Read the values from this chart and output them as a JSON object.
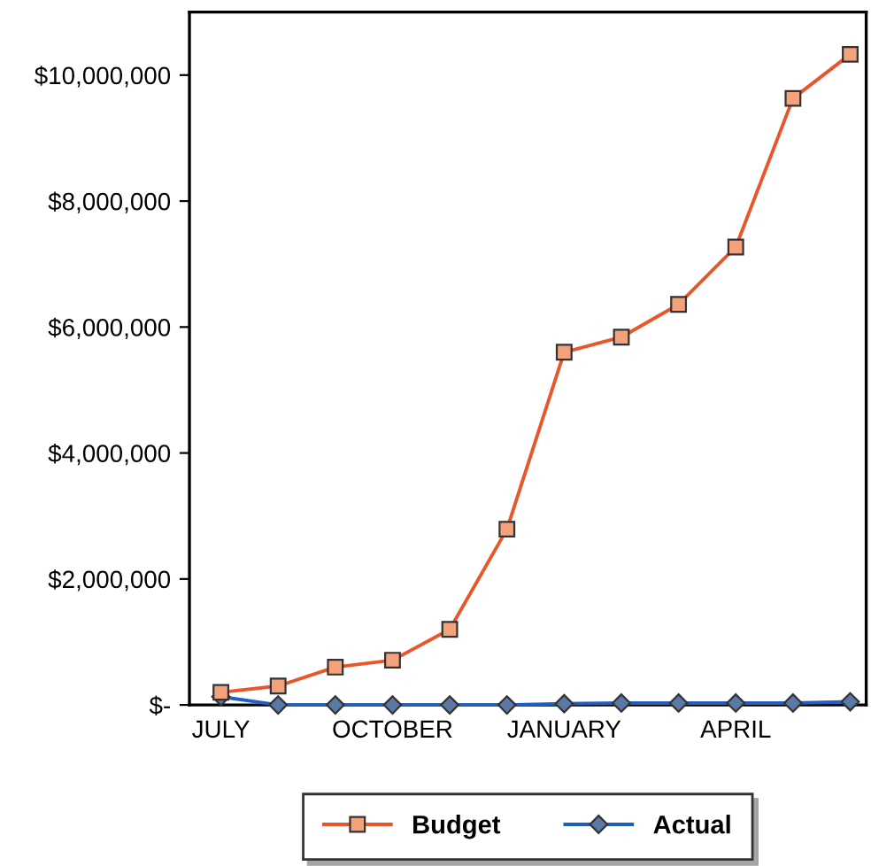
{
  "chart_data": {
    "type": "line",
    "categories": [
      "JULY",
      null,
      null,
      "OCTOBER",
      null,
      null,
      "JANUARY",
      null,
      null,
      "APRIL",
      null,
      null
    ],
    "series": [
      {
        "name": "Budget",
        "color": "#e8562a",
        "marker": "square",
        "values": [
          200000,
          300000,
          600000,
          710000,
          1200000,
          2790000,
          5600000,
          5840000,
          6360000,
          7270000,
          9630000,
          10330000
        ]
      },
      {
        "name": "Actual",
        "color": "#1f5fbf",
        "marker": "diamond",
        "values": [
          130000,
          0,
          0,
          0,
          0,
          0,
          20000,
          30000,
          30000,
          30000,
          30000,
          50000
        ]
      }
    ],
    "ylim": [
      0,
      11000000
    ],
    "yticks": [
      {
        "value": 0,
        "label": "$-"
      },
      {
        "value": 2000000,
        "label": "$2,000,000"
      },
      {
        "value": 4000000,
        "label": "$4,000,000"
      },
      {
        "value": 6000000,
        "label": "$6,000,000"
      },
      {
        "value": 8000000,
        "label": "$8,000,000"
      },
      {
        "value": 10000000,
        "label": "$10,000,000"
      }
    ],
    "grid": false,
    "legend": "bottom"
  }
}
